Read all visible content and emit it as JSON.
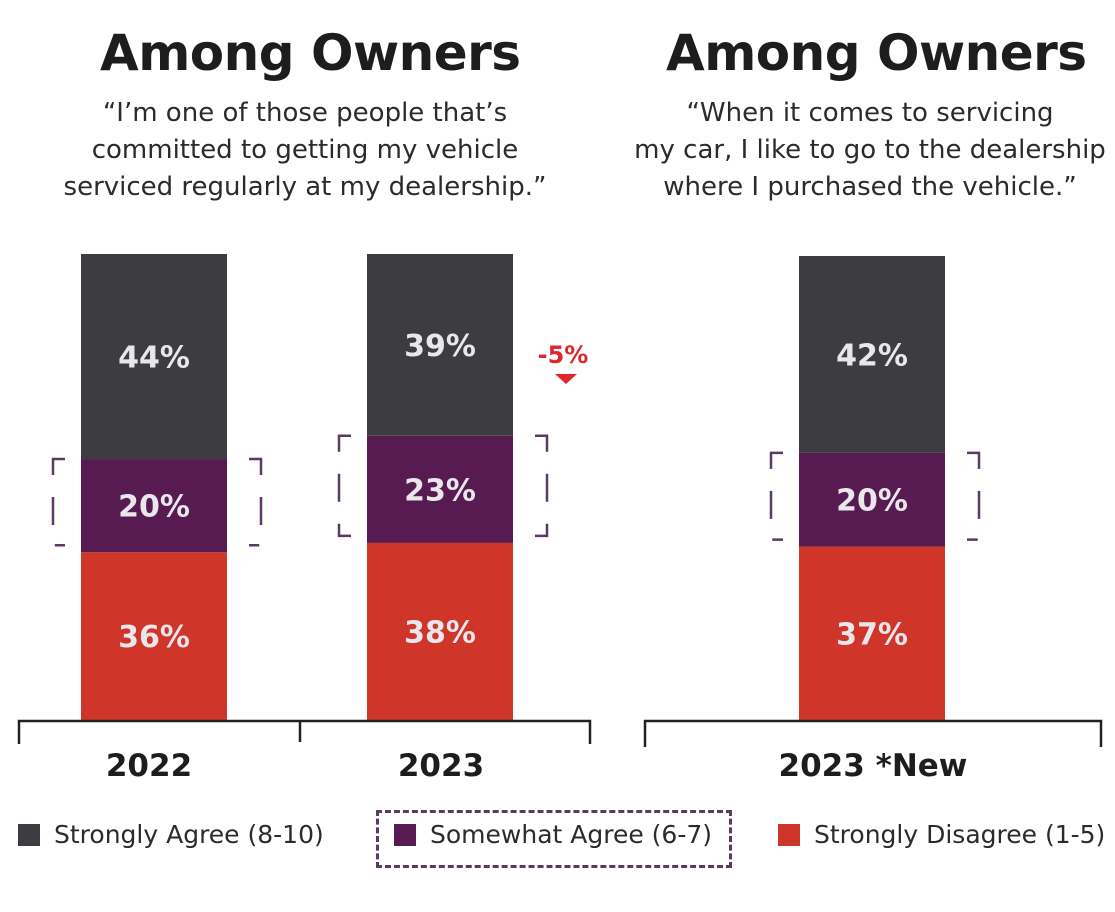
{
  "colors": {
    "strongly_agree": "#3d3c41",
    "somewhat_agree": "#571b51",
    "strongly_disagree": "#cf3528",
    "bracket": "#5a3a63",
    "delta": "#e0262b",
    "axis": "#222222"
  },
  "panels": [
    {
      "title": "Among Owners",
      "quote_lines": [
        "“I’m one of those people that’s",
        "committed to getting my vehicle",
        "serviced regularly at my dealership.”"
      ]
    },
    {
      "title": "Among Owners",
      "quote_lines": [
        "“When it comes to servicing",
        "my car, I like to go to the dealership",
        "where I purchased the vehicle.”"
      ]
    }
  ],
  "chart_data": {
    "type": "bar",
    "stacked": true,
    "categories": [
      "2022",
      "2023",
      "2023 *New"
    ],
    "series": [
      {
        "name": "Strongly Agree (8-10)",
        "values": [
          44,
          39,
          42
        ],
        "labels": [
          "44%",
          "39%",
          "42%"
        ]
      },
      {
        "name": "Somewhat Agree (6-7)",
        "values": [
          20,
          23,
          20
        ],
        "labels": [
          "20%",
          "23%",
          "20%"
        ]
      },
      {
        "name": "Strongly Disagree (1-5)",
        "values": [
          36,
          38,
          37
        ],
        "labels": [
          "36%",
          "38%",
          "37%"
        ]
      }
    ],
    "annotations": [
      {
        "category": "2023",
        "text": "-5%",
        "marker": "down-triangle"
      }
    ],
    "ylim": [
      0,
      100
    ],
    "legend": "bottom",
    "grid": false
  }
}
